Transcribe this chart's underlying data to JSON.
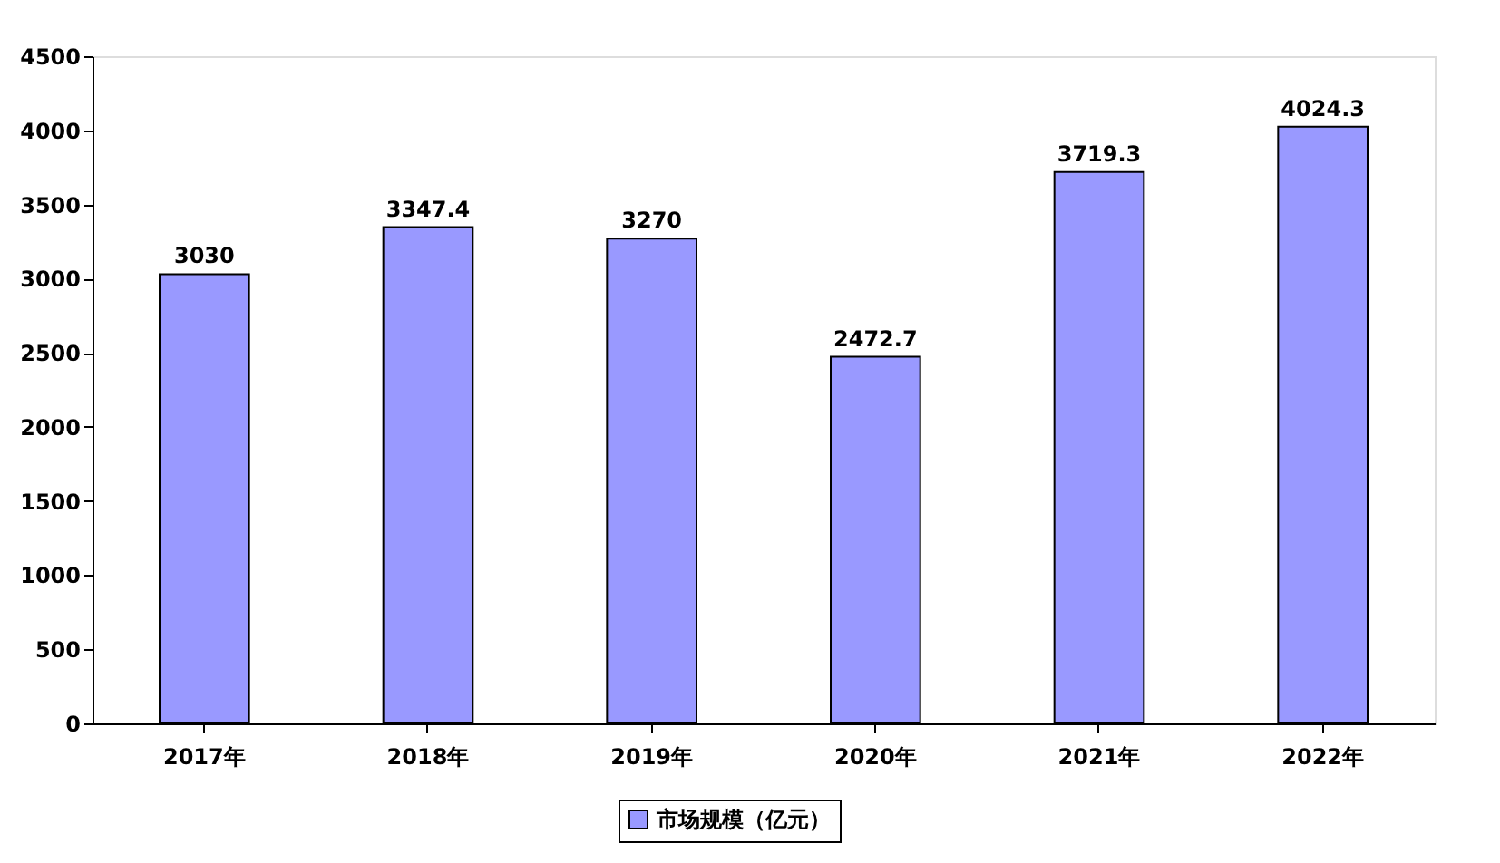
{
  "chart_data": {
    "type": "bar",
    "categories": [
      "2017年",
      "2018年",
      "2019年",
      "2020年",
      "2021年",
      "2022年"
    ],
    "series": [
      {
        "name": "市场规模（亿元）",
        "color": "#9999ff",
        "values": [
          3030,
          3347.4,
          3270,
          2472.7,
          3719.3,
          4024.3
        ]
      }
    ],
    "ylim": [
      0,
      4500
    ],
    "yticks": [
      0,
      500,
      1000,
      1500,
      2000,
      2500,
      3000,
      3500,
      4000,
      4500
    ],
    "data_labels": true,
    "grid": false,
    "legend": "bottom"
  }
}
